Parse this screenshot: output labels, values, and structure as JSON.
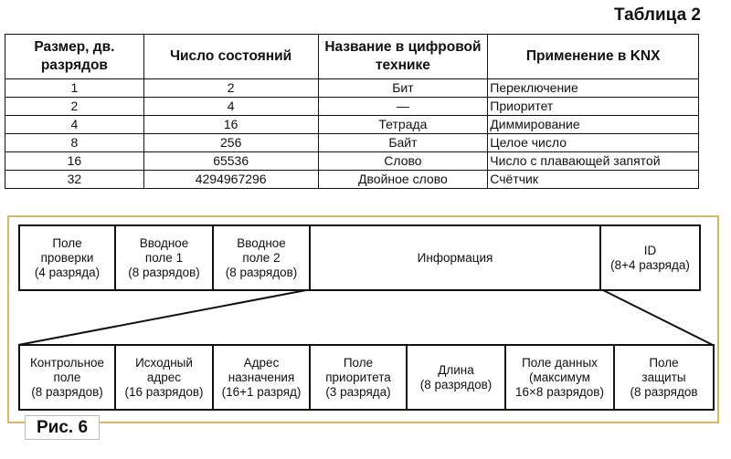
{
  "table": {
    "title": "Таблица 2",
    "headers": [
      "Размер, дв. разрядов",
      "Число состояний",
      "Название в цифровой технике",
      "Применение в KNX"
    ],
    "rows": [
      [
        "1",
        "2",
        "Бит",
        "Переключение"
      ],
      [
        "2",
        "4",
        "—",
        "Приоритет"
      ],
      [
        "4",
        "16",
        "Тетрада",
        "Диммирование"
      ],
      [
        "8",
        "256",
        "Байт",
        "Целое число"
      ],
      [
        "16",
        "65536",
        "Слово",
        "Число с плавающей запятой"
      ],
      [
        "32",
        "4294967296",
        "Двойное слово",
        "Счётчик"
      ]
    ]
  },
  "figure": {
    "caption": "Рис. 6",
    "top_fields": [
      {
        "name": "Поле",
        "line2": "проверки",
        "line3": "(4 разряда)"
      },
      {
        "name": "Вводное",
        "line2": "поле 1",
        "line3": "(8 разрядов)"
      },
      {
        "name": "Вводное",
        "line2": "поле 2",
        "line3": "(8 разрядов)"
      },
      {
        "name": "Информация"
      },
      {
        "name": "ID",
        "line2": "(8+4 разряда)"
      }
    ],
    "bottom_fields": [
      {
        "name": "Контрольное",
        "line2": "поле",
        "line3": "(8 разрядов)"
      },
      {
        "name": "Исходный",
        "line2": "адрес",
        "line3": "(16 разрядов)"
      },
      {
        "name": "Адрес",
        "line2": "назначения",
        "line3": "(16+1 разряд)"
      },
      {
        "name": "Поле",
        "line2": "приоритета",
        "line3": "(3 разряда)"
      },
      {
        "name": "Длина",
        "line2": "(8 разрядов)"
      },
      {
        "name": "Поле данных",
        "line2": "(максимум",
        "line3": "16×8 разрядов)"
      },
      {
        "name": "Поле",
        "line2": "защиты",
        "line3": "(8 разрядов"
      }
    ],
    "frame_color": "#d9b56a"
  }
}
